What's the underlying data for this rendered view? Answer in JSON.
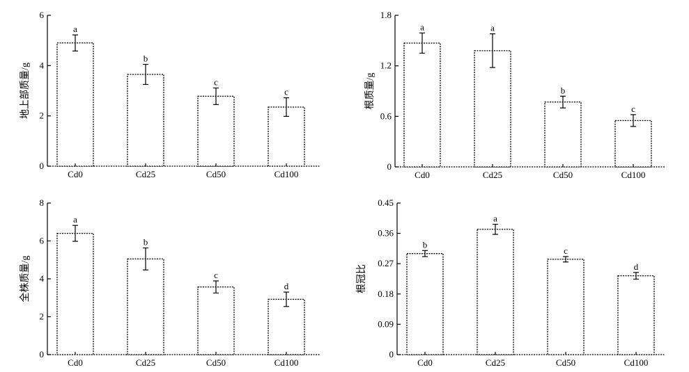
{
  "chart_data": [
    {
      "type": "bar",
      "ylabel": "地上部质量/g",
      "categories": [
        "Cd0",
        "Cd25",
        "Cd50",
        "Cd100"
      ],
      "values": [
        4.9,
        3.65,
        2.78,
        2.35
      ],
      "errors": [
        0.32,
        0.4,
        0.33,
        0.37
      ],
      "significance": [
        "a",
        "b",
        "c",
        "c"
      ],
      "ylim": [
        0,
        6
      ],
      "yticks": [
        0,
        2,
        4,
        6
      ],
      "yticklabels": [
        "0",
        "2",
        "4",
        "6"
      ]
    },
    {
      "type": "bar",
      "ylabel": "根质量/g",
      "categories": [
        "Cd0",
        "Cd25",
        "Cd50",
        "Cd100"
      ],
      "values": [
        1.47,
        1.38,
        0.77,
        0.55
      ],
      "errors": [
        0.12,
        0.2,
        0.07,
        0.07
      ],
      "significance": [
        "a",
        "a",
        "b",
        "c"
      ],
      "ylim": [
        0,
        1.8
      ],
      "yticks": [
        0,
        0.6,
        1.2,
        1.8
      ],
      "yticklabels": [
        "0",
        "0.6",
        "1.2",
        "1.8"
      ]
    },
    {
      "type": "bar",
      "ylabel": "全株质量/g",
      "categories": [
        "Cd0",
        "Cd25",
        "Cd50",
        "Cd100"
      ],
      "values": [
        6.4,
        5.05,
        3.57,
        2.92
      ],
      "errors": [
        0.42,
        0.58,
        0.32,
        0.38
      ],
      "significance": [
        "a",
        "b",
        "c",
        "d"
      ],
      "ylim": [
        0,
        8
      ],
      "yticks": [
        0,
        2,
        4,
        6,
        8
      ],
      "yticklabels": [
        "0",
        "2",
        "4",
        "6",
        "8"
      ]
    },
    {
      "type": "bar",
      "ylabel": "根冠比",
      "categories": [
        "Cd0",
        "Cd25",
        "Cd50",
        "Cd100"
      ],
      "values": [
        0.3,
        0.372,
        0.283,
        0.234
      ],
      "errors": [
        0.009,
        0.015,
        0.008,
        0.01
      ],
      "significance": [
        "b",
        "a",
        "c",
        "d"
      ],
      "ylim": [
        0,
        0.45
      ],
      "yticks": [
        0,
        0.09,
        0.18,
        0.27,
        0.36,
        0.45
      ],
      "yticklabels": [
        "0",
        "0.09",
        "0.18",
        "0.27",
        "0.36",
        "0.45"
      ]
    }
  ]
}
